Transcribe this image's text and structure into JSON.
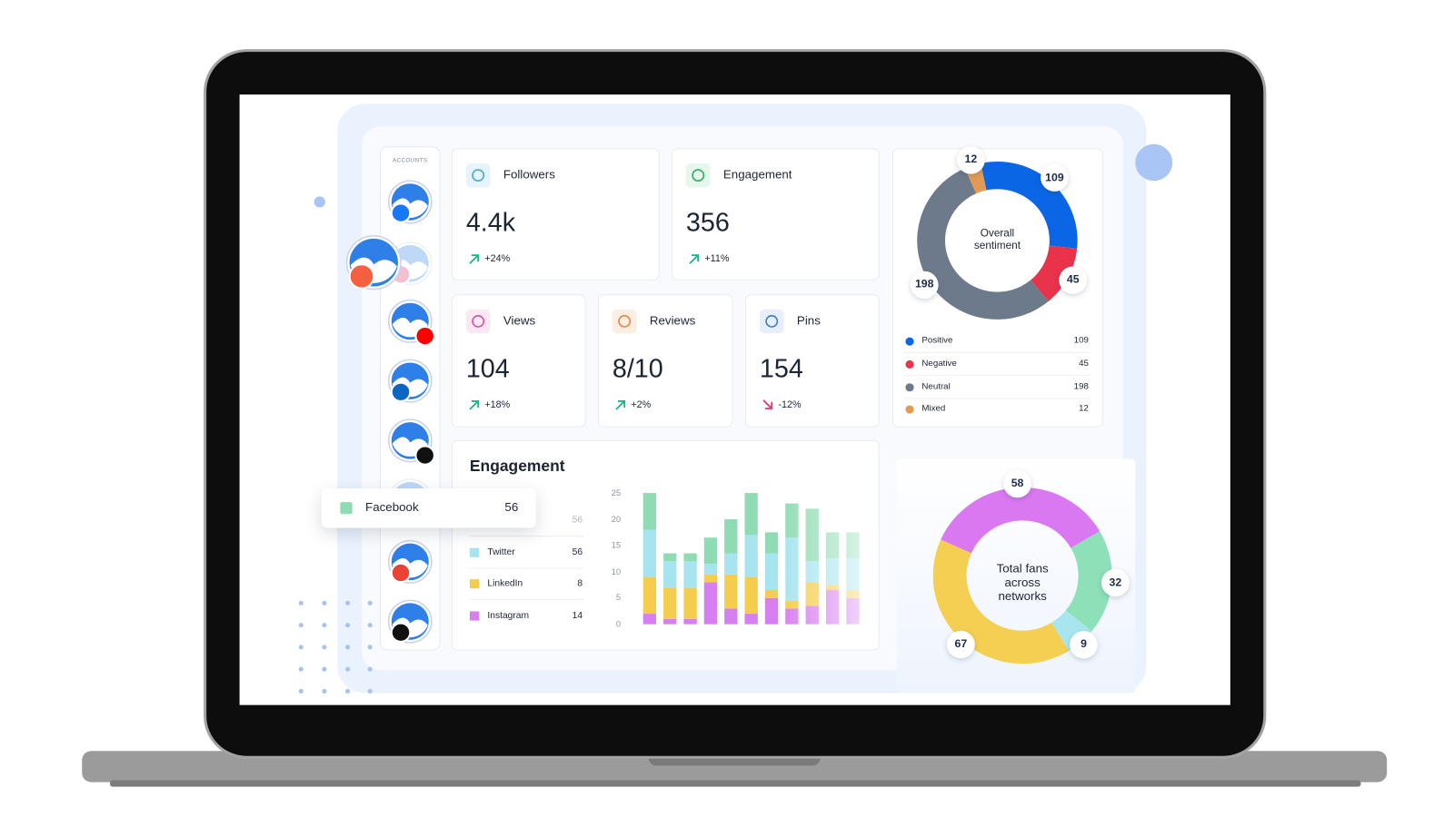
{
  "accounts_label": "ACCOUNTS",
  "stats": [
    {
      "label": "Followers",
      "value": "4.4k",
      "change": "+24%"
    },
    {
      "label": "Engagement",
      "value": 356,
      "change": "+11%"
    },
    {
      "label": "Views",
      "value": 104,
      "change": "+18%"
    },
    {
      "label": "Reviews",
      "value": "8/10",
      "change": "+2%"
    },
    {
      "label": "Pins",
      "value": 154,
      "change": "-12%"
    }
  ],
  "chart_data": [
    {
      "type": "bar",
      "stacked": true,
      "title": "Engagement",
      "categories": [
        null,
        null,
        null,
        null,
        null,
        null,
        null,
        null,
        null,
        null,
        null
      ],
      "series": [
        {
          "name": "Facebook",
          "color": "#8fdcb4",
          "total": 56,
          "values": [
            7,
            1.5,
            1.5,
            5,
            6.5,
            8,
            4,
            6.5,
            10,
            5,
            5
          ]
        },
        {
          "name": "Twitter",
          "color": "#a6e4ef",
          "total": 56,
          "values": [
            9,
            5,
            5,
            2,
            4,
            8,
            7,
            12,
            4,
            5,
            6
          ]
        },
        {
          "name": "LinkedIn",
          "color": "#f4cd4f",
          "total": 8,
          "values": [
            7,
            6,
            6,
            1.5,
            6.5,
            7,
            1.5,
            1.5,
            4.5,
            1,
            1.5
          ]
        },
        {
          "name": "Instagram",
          "color": "#d77ef0",
          "total": 14,
          "values": [
            2,
            1,
            1,
            8,
            3,
            2,
            5,
            3,
            3.5,
            6.5,
            5
          ]
        }
      ],
      "ylim": [
        0,
        25
      ],
      "yticks": [
        0,
        5,
        10,
        15,
        20,
        25
      ]
    },
    {
      "type": "pie",
      "title": "Overall sentiment",
      "categories": [
        "Positive",
        "Negative",
        "Neutral",
        "Mixed"
      ],
      "values": [
        109,
        45,
        198,
        12
      ],
      "colors": [
        "#0a66e4",
        "#e8334a",
        "#6d7a8c",
        "#e39a52"
      ]
    },
    {
      "type": "pie",
      "title": "Total fans across networks",
      "values": [
        58,
        32,
        9,
        67
      ],
      "colors": [
        "#d978f0",
        "#8ee0b8",
        "#a8e6ef",
        "#f5cf52"
      ]
    }
  ]
}
